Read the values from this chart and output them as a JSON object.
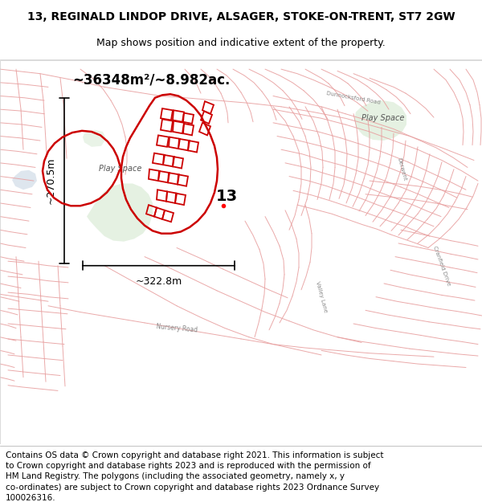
{
  "title": "13, REGINALD LINDOP DRIVE, ALSAGER, STOKE-ON-TRENT, ST7 2GW",
  "subtitle": "Map shows position and indicative extent of the property.",
  "area_text": "~36348m²/~8.982ac.",
  "width_text": "~322.8m",
  "height_text": "~270.5m",
  "label_13": "13",
  "bg_color": "#ffffff",
  "map_bg": "#f5efef",
  "road_color": "#e8a0a0",
  "plot_color": "#cc0000",
  "green_color": "#d4e8d0",
  "blue_color": "#d0dce8",
  "title_fontsize": 10,
  "subtitle_fontsize": 9,
  "footer_fontsize": 7.5,
  "footer_lines": [
    "Contains OS data © Crown copyright and database right 2021. This information is subject",
    "to Crown copyright and database rights 2023 and is reproduced with the permission of",
    "HM Land Registry. The polygons (including the associated geometry, namely x, y",
    "co-ordinates) are subject to Crown copyright and database rights 2023 Ordnance Survey",
    "100026316."
  ]
}
